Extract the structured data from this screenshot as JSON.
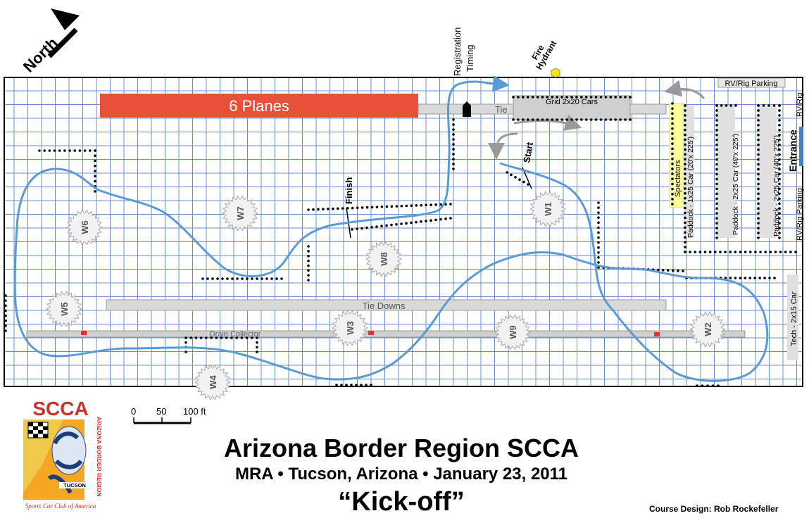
{
  "north_label": "North",
  "labels": {
    "planes": "6 Planes",
    "tie_top": "Tie",
    "grid": "Grid 2x20 Cars",
    "rv_top": "RV/Rig Parking",
    "rv_side_top": "RV/Rig",
    "rv_side_bottom": "RV/Rig Parking",
    "entrance": "Entrance",
    "spectators": "Spectators",
    "paddock1": "Paddock - 1x25 Car (20'x 225')",
    "paddock2": "Paddock - 2x25 Car (40'x 225')",
    "paddock3": "Paddock - 2x25 Car (40'x 225')",
    "tech": "Tech - 2x15 Car",
    "tie_downs": "Tie Downs",
    "drain": "Drain Collector",
    "registration": "Registration",
    "timing": "Timing",
    "fire": "Fire",
    "hydrant": "Hydrant",
    "start": "Start",
    "finish": "Finish"
  },
  "workers": [
    "W1",
    "W2",
    "W3",
    "W4",
    "W5",
    "W6",
    "W7",
    "W8",
    "W9"
  ],
  "scale": {
    "zero": "0",
    "mid": "50",
    "end": "100 ft"
  },
  "logo": {
    "org": "SCCA",
    "region": "ARIZONA BORDER REGION",
    "city": "TUCSON",
    "tagline": "Sports Car Club of America"
  },
  "title": {
    "line1": "Arizona Border Region SCCA",
    "line2": "MRA • Tucson, Arizona • January 23, 2011",
    "line3": "“Kick-off”"
  },
  "credit": "Course Design:  Rob Rockefeller",
  "colors": {
    "course": "#5b9bd5",
    "planes": "#e8503a",
    "grid_lines": "#6a8fd0",
    "hydrant": "#ffe600",
    "spectators": "#ffff99",
    "entrance": "#4a7fc1"
  }
}
